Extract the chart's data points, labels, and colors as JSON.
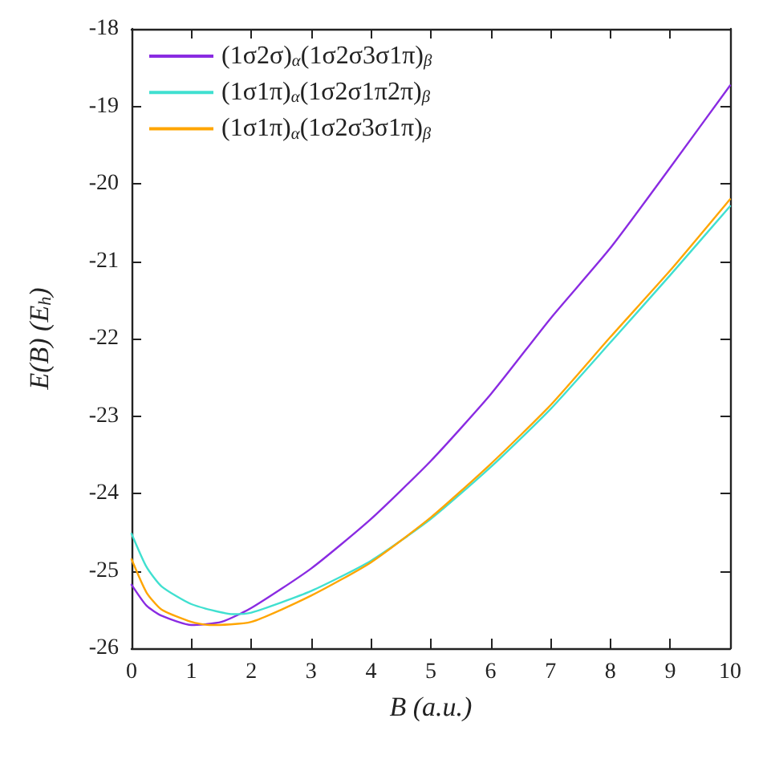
{
  "chart_data": {
    "type": "line",
    "xlabel": "B (a.u.)",
    "ylabel": "E(B) (E$_{h}$)",
    "xlim": [
      0,
      10
    ],
    "ylim": [
      -26,
      -18
    ],
    "xticks": [
      0,
      1,
      2,
      3,
      4,
      5,
      6,
      7,
      8,
      9,
      10
    ],
    "yticks": [
      -26,
      -25,
      -24,
      -23,
      -22,
      -21,
      -20,
      -19,
      -18
    ],
    "grid": false,
    "legend": "top left",
    "marker": "none",
    "line_style": "solid",
    "series": [
      {
        "name": "(1σ2σ)$_{α}$(1σ2σ3σ1π)$_{β}$",
        "color": "#8a2be2",
        "x": [
          0,
          0.25,
          0.5,
          1,
          1.5,
          2,
          3,
          4,
          5,
          6,
          7,
          8,
          9,
          10
        ],
        "values": [
          -25.18,
          -25.45,
          -25.58,
          -25.7,
          -25.66,
          -25.48,
          -24.97,
          -24.33,
          -23.58,
          -22.72,
          -21.74,
          -20.83,
          -19.79,
          -18.73
        ]
      },
      {
        "name": "(1σ1π)$_{α}$(1σ2σ1π2π)$_{β}$",
        "color": "#40e0d0",
        "x": [
          0,
          0.25,
          0.5,
          1,
          1.7,
          2,
          3,
          4,
          5,
          6,
          7,
          8,
          9,
          10
        ],
        "values": [
          -24.52,
          -24.95,
          -25.2,
          -25.43,
          -25.56,
          -25.54,
          -25.26,
          -24.87,
          -24.33,
          -23.66,
          -22.91,
          -22.05,
          -21.18,
          -20.29
        ]
      },
      {
        "name": "(1σ1π)$_{α}$(1σ2σ3σ1π)$_{β}$",
        "color": "#ffa500",
        "x": [
          0,
          0.25,
          0.5,
          1,
          1.3,
          2,
          3,
          4,
          5,
          6,
          7,
          8,
          9,
          10
        ],
        "values": [
          -24.85,
          -25.28,
          -25.5,
          -25.66,
          -25.7,
          -25.66,
          -25.32,
          -24.89,
          -24.31,
          -23.62,
          -22.86,
          -21.98,
          -21.12,
          -20.2
        ]
      }
    ]
  }
}
